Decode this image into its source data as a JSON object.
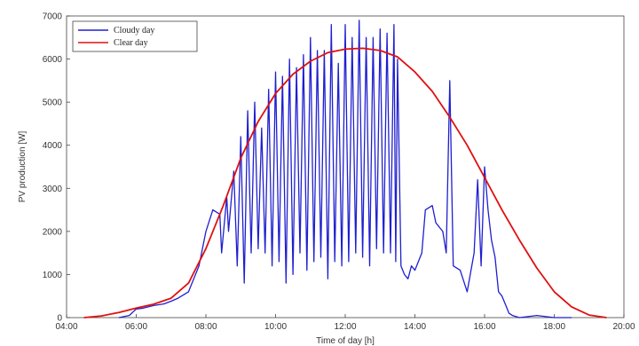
{
  "chart_data": {
    "type": "line",
    "title": "",
    "xlabel": "Time of day [h]",
    "ylabel": "PV production [W]",
    "xlim": [
      4,
      20
    ],
    "ylim": [
      0,
      7000
    ],
    "x_ticks": [
      "04:00",
      "06:00",
      "08:00",
      "10:00",
      "12:00",
      "14:00",
      "16:00",
      "18:00",
      "20:00"
    ],
    "y_ticks": [
      "0",
      "1000",
      "2000",
      "3000",
      "4000",
      "5000",
      "6000",
      "7000"
    ],
    "grid": false,
    "legend_position": "top-left",
    "series": [
      {
        "name": "Cloudy day",
        "color": "#1f1fd0",
        "x": [
          5.5,
          5.8,
          6.0,
          6.2,
          6.5,
          6.8,
          7.0,
          7.2,
          7.5,
          7.8,
          8.0,
          8.2,
          8.4,
          8.45,
          8.6,
          8.65,
          8.8,
          8.9,
          9.0,
          9.1,
          9.2,
          9.3,
          9.4,
          9.5,
          9.6,
          9.7,
          9.8,
          9.9,
          10.0,
          10.1,
          10.2,
          10.3,
          10.4,
          10.5,
          10.6,
          10.7,
          10.8,
          10.9,
          11.0,
          11.1,
          11.2,
          11.3,
          11.4,
          11.5,
          11.6,
          11.7,
          11.8,
          11.9,
          12.0,
          12.1,
          12.2,
          12.3,
          12.4,
          12.5,
          12.6,
          12.7,
          12.8,
          12.9,
          13.0,
          13.1,
          13.2,
          13.3,
          13.4,
          13.45,
          13.5,
          13.6,
          13.7,
          13.8,
          13.9,
          14.0,
          14.2,
          14.3,
          14.5,
          14.6,
          14.8,
          14.9,
          15.0,
          15.1,
          15.3,
          15.5,
          15.7,
          15.8,
          15.9,
          16.0,
          16.1,
          16.2,
          16.3,
          16.4,
          16.5,
          16.6,
          16.7,
          16.8,
          17.0,
          17.5,
          18.0,
          18.5
        ],
        "y": [
          0,
          50,
          200,
          220,
          280,
          320,
          380,
          450,
          600,
          1200,
          2000,
          2500,
          2400,
          1500,
          2800,
          2000,
          3400,
          1200,
          4200,
          800,
          4800,
          1500,
          5000,
          1600,
          4400,
          1500,
          5300,
          1200,
          5700,
          1300,
          5600,
          800,
          6000,
          1000,
          5800,
          1500,
          6100,
          1100,
          6500,
          1300,
          6200,
          1400,
          6200,
          900,
          6800,
          1300,
          5900,
          1200,
          6800,
          1300,
          6500,
          1500,
          6900,
          1400,
          6500,
          1200,
          6500,
          1600,
          6700,
          1500,
          6600,
          1500,
          6800,
          1300,
          6000,
          1200,
          1000,
          900,
          1200,
          1100,
          1500,
          2500,
          2600,
          2200,
          2000,
          1500,
          5500,
          1200,
          1100,
          600,
          1500,
          3200,
          1200,
          3500,
          2500,
          1800,
          1400,
          600,
          500,
          300,
          100,
          50,
          0,
          50,
          0,
          0
        ]
      },
      {
        "name": "Clear day",
        "color": "#e01010",
        "x": [
          4.5,
          5.0,
          5.5,
          6.0,
          6.5,
          7.0,
          7.5,
          8.0,
          8.5,
          9.0,
          9.5,
          10.0,
          10.5,
          11.0,
          11.5,
          12.0,
          12.5,
          13.0,
          13.5,
          14.0,
          14.5,
          15.0,
          15.5,
          16.0,
          16.5,
          17.0,
          17.5,
          18.0,
          18.5,
          19.0,
          19.5
        ],
        "y": [
          0,
          40,
          120,
          220,
          310,
          450,
          800,
          1600,
          2600,
          3700,
          4550,
          5200,
          5650,
          5950,
          6150,
          6230,
          6250,
          6200,
          6050,
          5700,
          5250,
          4650,
          4000,
          3250,
          2500,
          1800,
          1150,
          600,
          250,
          60,
          0
        ]
      }
    ]
  }
}
